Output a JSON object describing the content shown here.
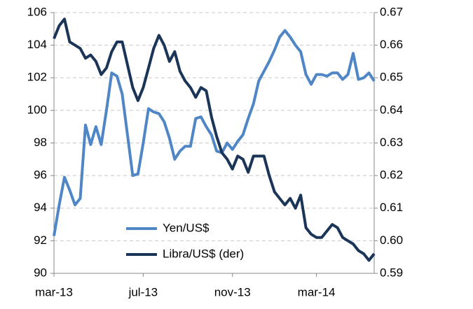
{
  "chart_data": {
    "type": "line",
    "categories": [
      "mar-13",
      null,
      null,
      null,
      null,
      null,
      null,
      null,
      null,
      null,
      null,
      null,
      null,
      null,
      null,
      null,
      null,
      "jul-13",
      null,
      null,
      null,
      null,
      null,
      null,
      null,
      null,
      null,
      null,
      null,
      null,
      null,
      null,
      null,
      null,
      "nov-13",
      null,
      null,
      null,
      null,
      null,
      null,
      null,
      null,
      null,
      null,
      null,
      null,
      null,
      null,
      null,
      "mar-14",
      null,
      null,
      null,
      null,
      null,
      null,
      null,
      null,
      null,
      null,
      null
    ],
    "series": [
      {
        "name": "Yen/US$",
        "color": "#4f86c6",
        "values": [
          92.3,
          94.2,
          95.9,
          95.1,
          94.2,
          94.6,
          99.1,
          97.9,
          99.0,
          97.9,
          100.0,
          102.3,
          102.1,
          101.0,
          98.5,
          96.0,
          96.1,
          98.0,
          100.1,
          99.9,
          99.8,
          99.3,
          98.3,
          97.0,
          97.5,
          97.8,
          97.8,
          99.5,
          99.6,
          99.0,
          98.5,
          97.5,
          97.4,
          98.0,
          97.6,
          98.1,
          98.5,
          99.5,
          100.4,
          101.8,
          102.4,
          103.0,
          103.7,
          104.5,
          104.9,
          104.5,
          104.0,
          103.6,
          102.2,
          101.6,
          102.2,
          102.2,
          102.1,
          102.3,
          102.3,
          101.9,
          102.2,
          103.5,
          101.9,
          102.0,
          102.3,
          101.8
        ]
      },
      {
        "name": "Libra/US$ (der)",
        "color": "#1a3557",
        "axis": "y2",
        "values": [
          0.662,
          0.666,
          0.668,
          0.661,
          0.66,
          0.659,
          0.656,
          0.657,
          0.655,
          0.651,
          0.653,
          0.658,
          0.661,
          0.661,
          0.654,
          0.647,
          0.643,
          0.647,
          0.653,
          0.659,
          0.663,
          0.66,
          0.655,
          0.658,
          0.652,
          0.649,
          0.647,
          0.644,
          0.647,
          0.646,
          0.638,
          0.632,
          0.627,
          0.625,
          0.622,
          0.626,
          0.625,
          0.621,
          0.626,
          0.626,
          0.626,
          0.62,
          0.615,
          0.613,
          0.611,
          0.613,
          0.61,
          0.614,
          0.604,
          0.602,
          0.601,
          0.601,
          0.603,
          0.605,
          0.604,
          0.601,
          0.6,
          0.599,
          0.597,
          0.596,
          0.594,
          0.596
        ]
      }
    ],
    "ylim": [
      90,
      106
    ],
    "yticks": [
      90,
      92,
      94,
      96,
      98,
      100,
      102,
      104,
      106
    ],
    "y2lim": [
      0.59,
      0.67
    ],
    "y2ticks": [
      0.59,
      {
        "value": 0.6,
        "label": "0.60"
      },
      0.61,
      0.62,
      0.63,
      0.64,
      0.65,
      0.66,
      0.67
    ],
    "grid": true,
    "legend": "bottom-left"
  }
}
